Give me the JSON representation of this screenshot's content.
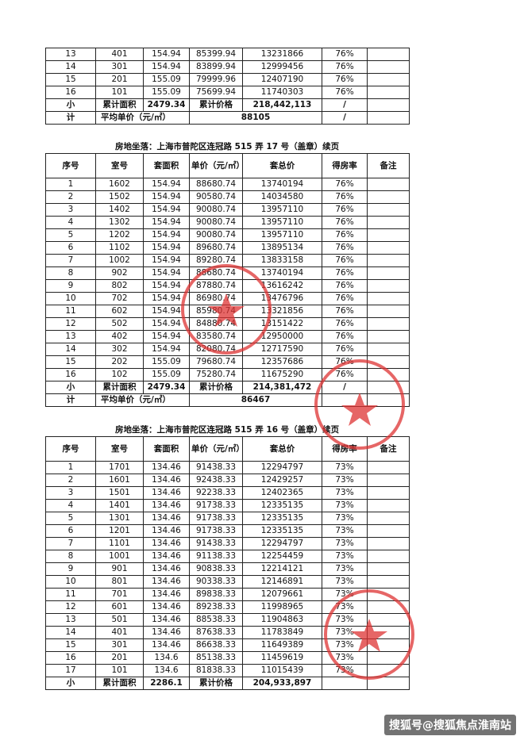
{
  "tables": [
    {
      "rows": [
        [
          "13",
          "401",
          "154.94",
          "85399.94",
          "13231866",
          "76%"
        ],
        [
          "14",
          "301",
          "154.94",
          "83899.94",
          "12999456",
          "76%"
        ],
        [
          "15",
          "201",
          "155.09",
          "79999.96",
          "12407190",
          "76%"
        ],
        [
          "16",
          "101",
          "155.09",
          "75699.94",
          "11740303",
          "76%"
        ]
      ],
      "subtotal": {
        "label": "小",
        "area_label": "累计面积",
        "area": "2479.34",
        "price_label": "累计价格",
        "price": "218,442,113",
        "mark": "/"
      },
      "average": {
        "label": "计",
        "avg_label": "平均单价（元/㎡）",
        "avg": "88105",
        "mark": "/"
      }
    },
    {
      "title": "房地坐落：上海市普陀区连冠路 515 弄 17 号（盖章）续页",
      "header": [
        "序号",
        "室号",
        "套面积",
        "单价（元/㎡）",
        "套总价",
        "得房率",
        "备注"
      ],
      "rows": [
        [
          "1",
          "1602",
          "154.94",
          "88680.74",
          "13740194",
          "76%"
        ],
        [
          "2",
          "1502",
          "154.94",
          "90580.74",
          "14034580",
          "76%"
        ],
        [
          "3",
          "1402",
          "154.94",
          "90080.74",
          "13957110",
          "76%"
        ],
        [
          "4",
          "1302",
          "154.94",
          "90080.74",
          "13957110",
          "76%"
        ],
        [
          "5",
          "1202",
          "154.94",
          "90080.74",
          "13957110",
          "76%"
        ],
        [
          "6",
          "1102",
          "154.94",
          "89680.74",
          "13895134",
          "76%"
        ],
        [
          "7",
          "1002",
          "154.94",
          "89280.74",
          "13833158",
          "76%"
        ],
        [
          "8",
          "902",
          "154.94",
          "88680.74",
          "13740194",
          "76%"
        ],
        [
          "9",
          "802",
          "154.94",
          "87880.74",
          "13616242",
          "76%"
        ],
        [
          "10",
          "702",
          "154.94",
          "86980.74",
          "13476796",
          "76%"
        ],
        [
          "11",
          "602",
          "154.94",
          "85980.74",
          "13321856",
          "76%"
        ],
        [
          "12",
          "502",
          "154.94",
          "84880.74",
          "13151422",
          "76%"
        ],
        [
          "13",
          "402",
          "154.94",
          "83580.74",
          "12950000",
          "76%"
        ],
        [
          "14",
          "302",
          "154.94",
          "82080.74",
          "12717590",
          "76%"
        ],
        [
          "15",
          "202",
          "155.09",
          "79680.74",
          "12357686",
          "76%"
        ],
        [
          "16",
          "102",
          "155.09",
          "75280.74",
          "11675290",
          "76%"
        ]
      ],
      "subtotal": {
        "label": "小",
        "area_label": "累计面积",
        "area": "2479.34",
        "price_label": "累计价格",
        "price": "214,381,472",
        "mark": "/"
      },
      "average": {
        "label": "计",
        "avg_label": "平均单价（元/㎡）",
        "avg": "86467"
      }
    },
    {
      "title": "房地坐落：上海市普陀区连冠路 515 弄 16 号（盖章）续页",
      "header": [
        "序号",
        "室号",
        "套面积",
        "单价（元/㎡）",
        "套总价",
        "得房率",
        "备注"
      ],
      "rows": [
        [
          "1",
          "1701",
          "134.46",
          "91438.33",
          "12294797",
          "73%"
        ],
        [
          "2",
          "1601",
          "134.46",
          "92438.33",
          "12429257",
          "73%"
        ],
        [
          "3",
          "1501",
          "134.46",
          "92238.33",
          "12402365",
          "73%"
        ],
        [
          "4",
          "1401",
          "134.46",
          "91738.33",
          "12335135",
          "73%"
        ],
        [
          "5",
          "1301",
          "134.46",
          "91738.33",
          "12335135",
          "73%"
        ],
        [
          "6",
          "1201",
          "134.46",
          "91738.33",
          "12335135",
          "73%"
        ],
        [
          "7",
          "1101",
          "134.46",
          "91438.33",
          "12294797",
          "73%"
        ],
        [
          "8",
          "1001",
          "134.46",
          "91138.33",
          "12254459",
          "73%"
        ],
        [
          "9",
          "901",
          "134.46",
          "90838.33",
          "12214121",
          "73%"
        ],
        [
          "10",
          "801",
          "134.46",
          "90338.33",
          "12146891",
          "73%"
        ],
        [
          "11",
          "701",
          "134.46",
          "89838.33",
          "12079661",
          "73%"
        ],
        [
          "12",
          "601",
          "134.46",
          "89238.33",
          "11998965",
          "73%"
        ],
        [
          "13",
          "501",
          "134.46",
          "88538.33",
          "11904863",
          "73%"
        ],
        [
          "14",
          "401",
          "134.46",
          "87638.33",
          "11783849",
          "73%"
        ],
        [
          "15",
          "301",
          "134.46",
          "86638.33",
          "11649389",
          "73%"
        ],
        [
          "16",
          "201",
          "134.6",
          "85138.33",
          "11459619",
          "73%"
        ],
        [
          "17",
          "101",
          "134.6",
          "81838.33",
          "11015439",
          "73%"
        ]
      ],
      "subtotal": {
        "label": "小",
        "area_label": "累计面积",
        "area": "2286.1",
        "price_label": "累计价格",
        "price": "204,933,897"
      }
    }
  ],
  "watermark": "搜狐号@搜狐焦点淮南站"
}
